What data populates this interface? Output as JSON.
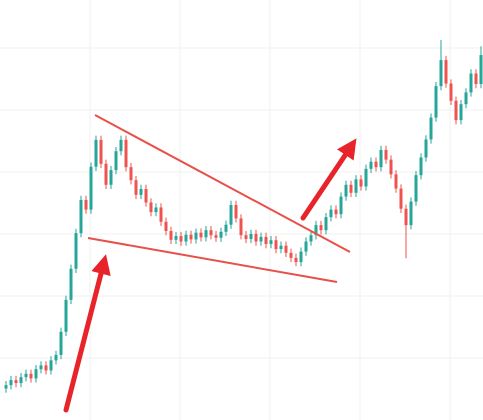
{
  "chart_data": {
    "type": "candlestick",
    "ylim": [
      0,
      100
    ],
    "up_color": "#26a69a",
    "down_color": "#ef5350",
    "open": [
      7.5,
      8.3,
      9.5,
      8.8,
      10.2,
      11.0,
      9.9,
      12.1,
      13.0,
      11.8,
      14.2,
      15.5,
      21.0,
      28.6,
      36.0,
      44.5,
      52.4,
      50.1,
      60.3,
      66.7,
      61.0,
      56.0,
      59.5,
      64.0,
      66.7,
      60.2,
      57.1,
      53.6,
      55.0,
      51.8,
      49.5,
      50.6,
      47.2,
      45.0,
      42.9,
      43.8,
      42.5,
      44.1,
      43.0,
      44.6,
      43.5,
      45.2,
      44.0,
      43.4,
      44.8,
      46.5,
      51.2,
      48.0,
      44.0,
      43.1,
      44.3,
      42.5,
      43.6,
      41.9,
      42.8,
      40.7,
      41.5,
      39.8,
      38.6,
      37.6,
      40.1,
      42.5,
      44.0,
      46.4,
      45.2,
      48.3,
      50.1,
      49.0,
      53.2,
      56.0,
      54.1,
      57.3,
      55.6,
      59.8,
      61.5,
      60.2,
      64.3,
      62.0,
      58.5,
      55.1,
      50.3,
      46.4,
      52.0,
      58.3,
      62.5,
      66.8,
      72.0,
      79.5,
      85.7,
      80.1,
      76.0,
      71.4,
      75.2,
      78.0,
      82.5,
      80.0
    ],
    "high": [
      9.3,
      10.5,
      10.5,
      11.2,
      12.0,
      12.0,
      13.1,
      14.0,
      14.0,
      15.2,
      16.5,
      22.0,
      29.6,
      37.0,
      45.5,
      53.4,
      53.4,
      61.3,
      67.7,
      67.7,
      62.0,
      60.5,
      65.0,
      67.7,
      67.7,
      61.2,
      58.1,
      56.0,
      56.0,
      52.8,
      51.6,
      51.6,
      48.2,
      46.0,
      44.8,
      44.8,
      45.1,
      45.1,
      45.6,
      45.6,
      46.2,
      46.2,
      45.0,
      45.8,
      47.5,
      52.2,
      52.2,
      49.0,
      45.0,
      45.3,
      45.3,
      44.6,
      44.6,
      43.8,
      43.8,
      42.5,
      42.5,
      40.8,
      39.6,
      41.1,
      43.5,
      45.0,
      47.4,
      47.4,
      49.3,
      51.1,
      51.1,
      54.2,
      57.0,
      57.0,
      58.3,
      58.3,
      60.8,
      62.5,
      62.5,
      65.3,
      65.3,
      63.0,
      59.5,
      56.1,
      51.3,
      53.0,
      59.3,
      63.5,
      67.8,
      73.0,
      80.5,
      90.5,
      86.7,
      81.1,
      77.0,
      76.2,
      79.0,
      83.5,
      83.5,
      89.0
    ],
    "low": [
      6.5,
      7.3,
      7.8,
      7.8,
      9.2,
      8.9,
      8.9,
      11.1,
      10.8,
      10.8,
      13.2,
      14.5,
      20.0,
      27.6,
      35.0,
      43.5,
      49.1,
      49.1,
      59.3,
      60.0,
      55.0,
      55.0,
      58.5,
      63.0,
      59.2,
      56.1,
      52.6,
      52.6,
      50.8,
      48.5,
      48.5,
      46.2,
      44.0,
      41.9,
      41.9,
      41.5,
      41.5,
      42.0,
      42.0,
      42.5,
      42.5,
      43.0,
      42.4,
      42.4,
      43.8,
      45.5,
      47.0,
      43.0,
      42.1,
      42.1,
      41.5,
      41.5,
      40.9,
      40.9,
      39.7,
      39.7,
      38.8,
      37.6,
      36.6,
      36.6,
      39.1,
      41.5,
      43.0,
      44.2,
      44.2,
      47.3,
      48.0,
      48.0,
      52.2,
      53.1,
      53.1,
      54.6,
      54.6,
      58.8,
      59.2,
      59.2,
      61.0,
      57.5,
      54.1,
      49.3,
      38.5,
      45.4,
      51.0,
      57.3,
      61.5,
      65.8,
      71.0,
      78.5,
      79.1,
      75.0,
      70.4,
      70.4,
      74.2,
      77.0,
      79.0,
      79.0
    ],
    "close": [
      8.3,
      9.5,
      8.8,
      10.2,
      11.0,
      9.9,
      12.1,
      13.0,
      11.8,
      14.2,
      15.5,
      21.0,
      28.6,
      36.0,
      44.5,
      52.4,
      50.1,
      60.3,
      66.7,
      61.0,
      56.0,
      59.5,
      64.0,
      66.7,
      60.2,
      57.1,
      53.6,
      55.0,
      51.8,
      49.5,
      50.6,
      47.2,
      45.0,
      42.9,
      43.8,
      42.5,
      44.1,
      43.0,
      44.6,
      43.5,
      45.2,
      44.0,
      43.4,
      44.8,
      46.5,
      51.2,
      48.0,
      44.0,
      43.1,
      44.3,
      42.5,
      43.6,
      41.9,
      42.8,
      40.7,
      41.5,
      39.8,
      38.6,
      37.6,
      40.1,
      42.5,
      44.0,
      46.4,
      45.2,
      48.3,
      50.1,
      49.0,
      53.2,
      56.0,
      54.1,
      57.3,
      55.6,
      59.8,
      61.5,
      60.2,
      64.3,
      62.0,
      58.5,
      55.1,
      50.3,
      46.4,
      52.0,
      58.3,
      62.5,
      66.8,
      72.0,
      79.5,
      85.7,
      80.1,
      76.0,
      71.4,
      75.2,
      78.0,
      82.5,
      80.0,
      86.9
    ]
  }
}
